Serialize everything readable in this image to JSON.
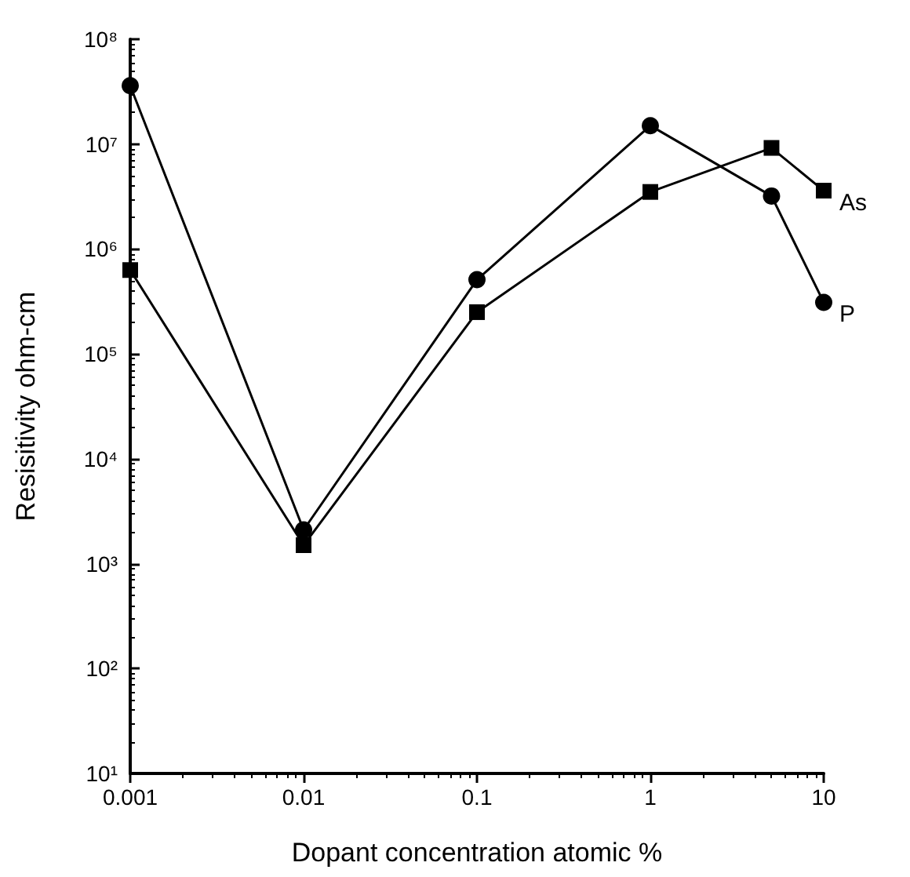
{
  "chart_data": {
    "type": "line",
    "xlabel": "Dopant concentration atomic %",
    "ylabel": "Resisitivity ohm-cm",
    "x": [
      0.001,
      0.01,
      0.1,
      1,
      5,
      10
    ],
    "series": [
      {
        "name": "P",
        "color": "#000000",
        "marker": "circle",
        "values": [
          36000000,
          2100,
          510000,
          15000000,
          3200000,
          310000
        ]
      },
      {
        "name": "As",
        "color": "#000000",
        "marker": "square",
        "values": [
          630000,
          1500,
          250000,
          3500000,
          9200000,
          3600000
        ]
      }
    ],
    "log": "xy",
    "xlim": [
      0.001,
      10
    ],
    "ylim": [
      10,
      100000000
    ],
    "xticks": [
      0.001,
      0.01,
      0.1,
      1,
      10
    ],
    "yticks": [
      {
        "value": 10,
        "label": "10¹"
      },
      {
        "value": 100,
        "label": "10²"
      },
      {
        "value": 1000,
        "label": "10³"
      },
      {
        "value": 10000,
        "label": "10⁴"
      },
      {
        "value": 100000,
        "label": "10⁵"
      },
      {
        "value": 1000000,
        "label": "10⁶"
      },
      {
        "value": 10000000,
        "label": "10⁷"
      },
      {
        "value": 100000000,
        "label": "10⁸"
      }
    ],
    "grid": false,
    "legend": false,
    "line_style": "solid"
  }
}
